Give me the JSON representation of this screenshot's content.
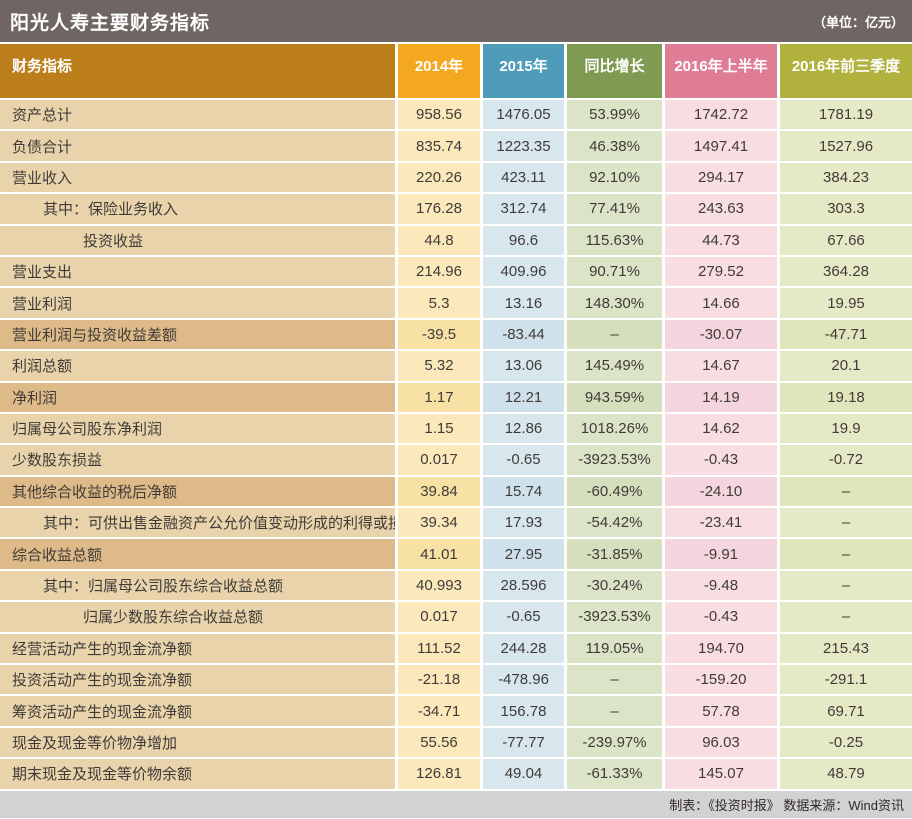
{
  "header": {
    "title": "阳光人寿主要财务指标",
    "unit": "（单位：亿元）"
  },
  "footer": {
    "credit": "制表：《投资时报》  数据来源：Wind资讯"
  },
  "colors": {
    "titlebar": "#6f6663",
    "header_label": "#bc7d1b",
    "header_2014": "#f4a820",
    "header_2015": "#4e9cba",
    "header_growth": "#7e9b51",
    "header_2016_half": "#df7d96",
    "header_2016_q3": "#b1b13d",
    "cell_label_light": "#e9d3ab",
    "cell_label_dark": "#deba88",
    "cell_2014": "#fbe9bc",
    "cell_2015": "#d8e7ee",
    "cell_growth": "#dce4c7",
    "cell_2016_half": "#f8dde3",
    "cell_2016_q3": "#e6e9c6",
    "footer_bar": "#d3d1d2"
  },
  "chart_data": {
    "type": "table",
    "title": "阳光人寿主要财务指标",
    "unit": "亿元",
    "columns": [
      "财务指标",
      "2014年",
      "2015年",
      "同比增长",
      "2016年上半年",
      "2016年前三季度"
    ],
    "rows": [
      {
        "label": "资产总计",
        "indent": 0,
        "dark": false,
        "values": [
          "958.56",
          "1476.05",
          "53.99%",
          "1742.72",
          "1781.19"
        ]
      },
      {
        "label": "负债合计",
        "indent": 0,
        "dark": false,
        "values": [
          "835.74",
          "1223.35",
          "46.38%",
          "1497.41",
          "1527.96"
        ]
      },
      {
        "label": "营业收入",
        "indent": 0,
        "dark": false,
        "values": [
          "220.26",
          "423.11",
          "92.10%",
          "294.17",
          "384.23"
        ]
      },
      {
        "label": "其中：保险业务收入",
        "indent": 1,
        "dark": false,
        "values": [
          "176.28",
          "312.74",
          "77.41%",
          "243.63",
          "303.3"
        ]
      },
      {
        "label": "投资收益",
        "indent": 2,
        "dark": false,
        "values": [
          "44.8",
          "96.6",
          "115.63%",
          "44.73",
          "67.66"
        ]
      },
      {
        "label": "营业支出",
        "indent": 0,
        "dark": false,
        "values": [
          "214.96",
          "409.96",
          "90.71%",
          "279.52",
          "364.28"
        ]
      },
      {
        "label": "营业利润",
        "indent": 0,
        "dark": false,
        "values": [
          "5.3",
          "13.16",
          "148.30%",
          "14.66",
          "19.95"
        ]
      },
      {
        "label": "营业利润与投资收益差额",
        "indent": 0,
        "dark": true,
        "values": [
          "-39.5",
          "-83.44",
          "–",
          "-30.07",
          "-47.71"
        ]
      },
      {
        "label": "利润总额",
        "indent": 0,
        "dark": false,
        "values": [
          "5.32",
          "13.06",
          "145.49%",
          "14.67",
          "20.1"
        ]
      },
      {
        "label": "净利润",
        "indent": 0,
        "dark": true,
        "values": [
          "1.17",
          "12.21",
          "943.59%",
          "14.19",
          "19.18"
        ]
      },
      {
        "label": "归属母公司股东净利润",
        "indent": 0,
        "dark": false,
        "values": [
          "1.15",
          "12.86",
          "1018.26%",
          "14.62",
          "19.9"
        ]
      },
      {
        "label": "少数股东损益",
        "indent": 0,
        "dark": false,
        "values": [
          "0.017",
          "-0.65",
          "-3923.53%",
          "-0.43",
          "-0.72"
        ]
      },
      {
        "label": "其他综合收益的税后净额",
        "indent": 0,
        "dark": true,
        "values": [
          "39.84",
          "15.74",
          "-60.49%",
          "-24.10",
          "–"
        ]
      },
      {
        "label": "其中：可供出售金融资产公允价值变动形成的利得或损失",
        "indent": 1,
        "dark": false,
        "values": [
          "39.34",
          "17.93",
          "-54.42%",
          "-23.41",
          "–"
        ]
      },
      {
        "label": "综合收益总额",
        "indent": 0,
        "dark": true,
        "values": [
          "41.01",
          "27.95",
          "-31.85%",
          "-9.91",
          "–"
        ]
      },
      {
        "label": "其中：归属母公司股东综合收益总额",
        "indent": 1,
        "dark": false,
        "values": [
          "40.993",
          "28.596",
          "-30.24%",
          "-9.48",
          "–"
        ]
      },
      {
        "label": "归属少数股东综合收益总额",
        "indent": 2,
        "dark": false,
        "values": [
          "0.017",
          "-0.65",
          "-3923.53%",
          "-0.43",
          "–"
        ]
      },
      {
        "label": "经营活动产生的现金流净额",
        "indent": 0,
        "dark": false,
        "values": [
          "111.52",
          "244.28",
          "119.05%",
          "194.70",
          "215.43"
        ]
      },
      {
        "label": "投资活动产生的现金流净额",
        "indent": 0,
        "dark": false,
        "values": [
          "-21.18",
          "-478.96",
          "–",
          "-159.20",
          "-291.1"
        ]
      },
      {
        "label": "筹资活动产生的现金流净额",
        "indent": 0,
        "dark": false,
        "values": [
          "-34.71",
          "156.78",
          "–",
          "57.78",
          "69.71"
        ]
      },
      {
        "label": "现金及现金等价物净增加",
        "indent": 0,
        "dark": false,
        "values": [
          "55.56",
          "-77.77",
          "-239.97%",
          "96.03",
          "-0.25"
        ]
      },
      {
        "label": "期末现金及现金等价物余额",
        "indent": 0,
        "dark": false,
        "values": [
          "126.81",
          "49.04",
          "-61.33%",
          "145.07",
          "48.79"
        ]
      }
    ]
  }
}
